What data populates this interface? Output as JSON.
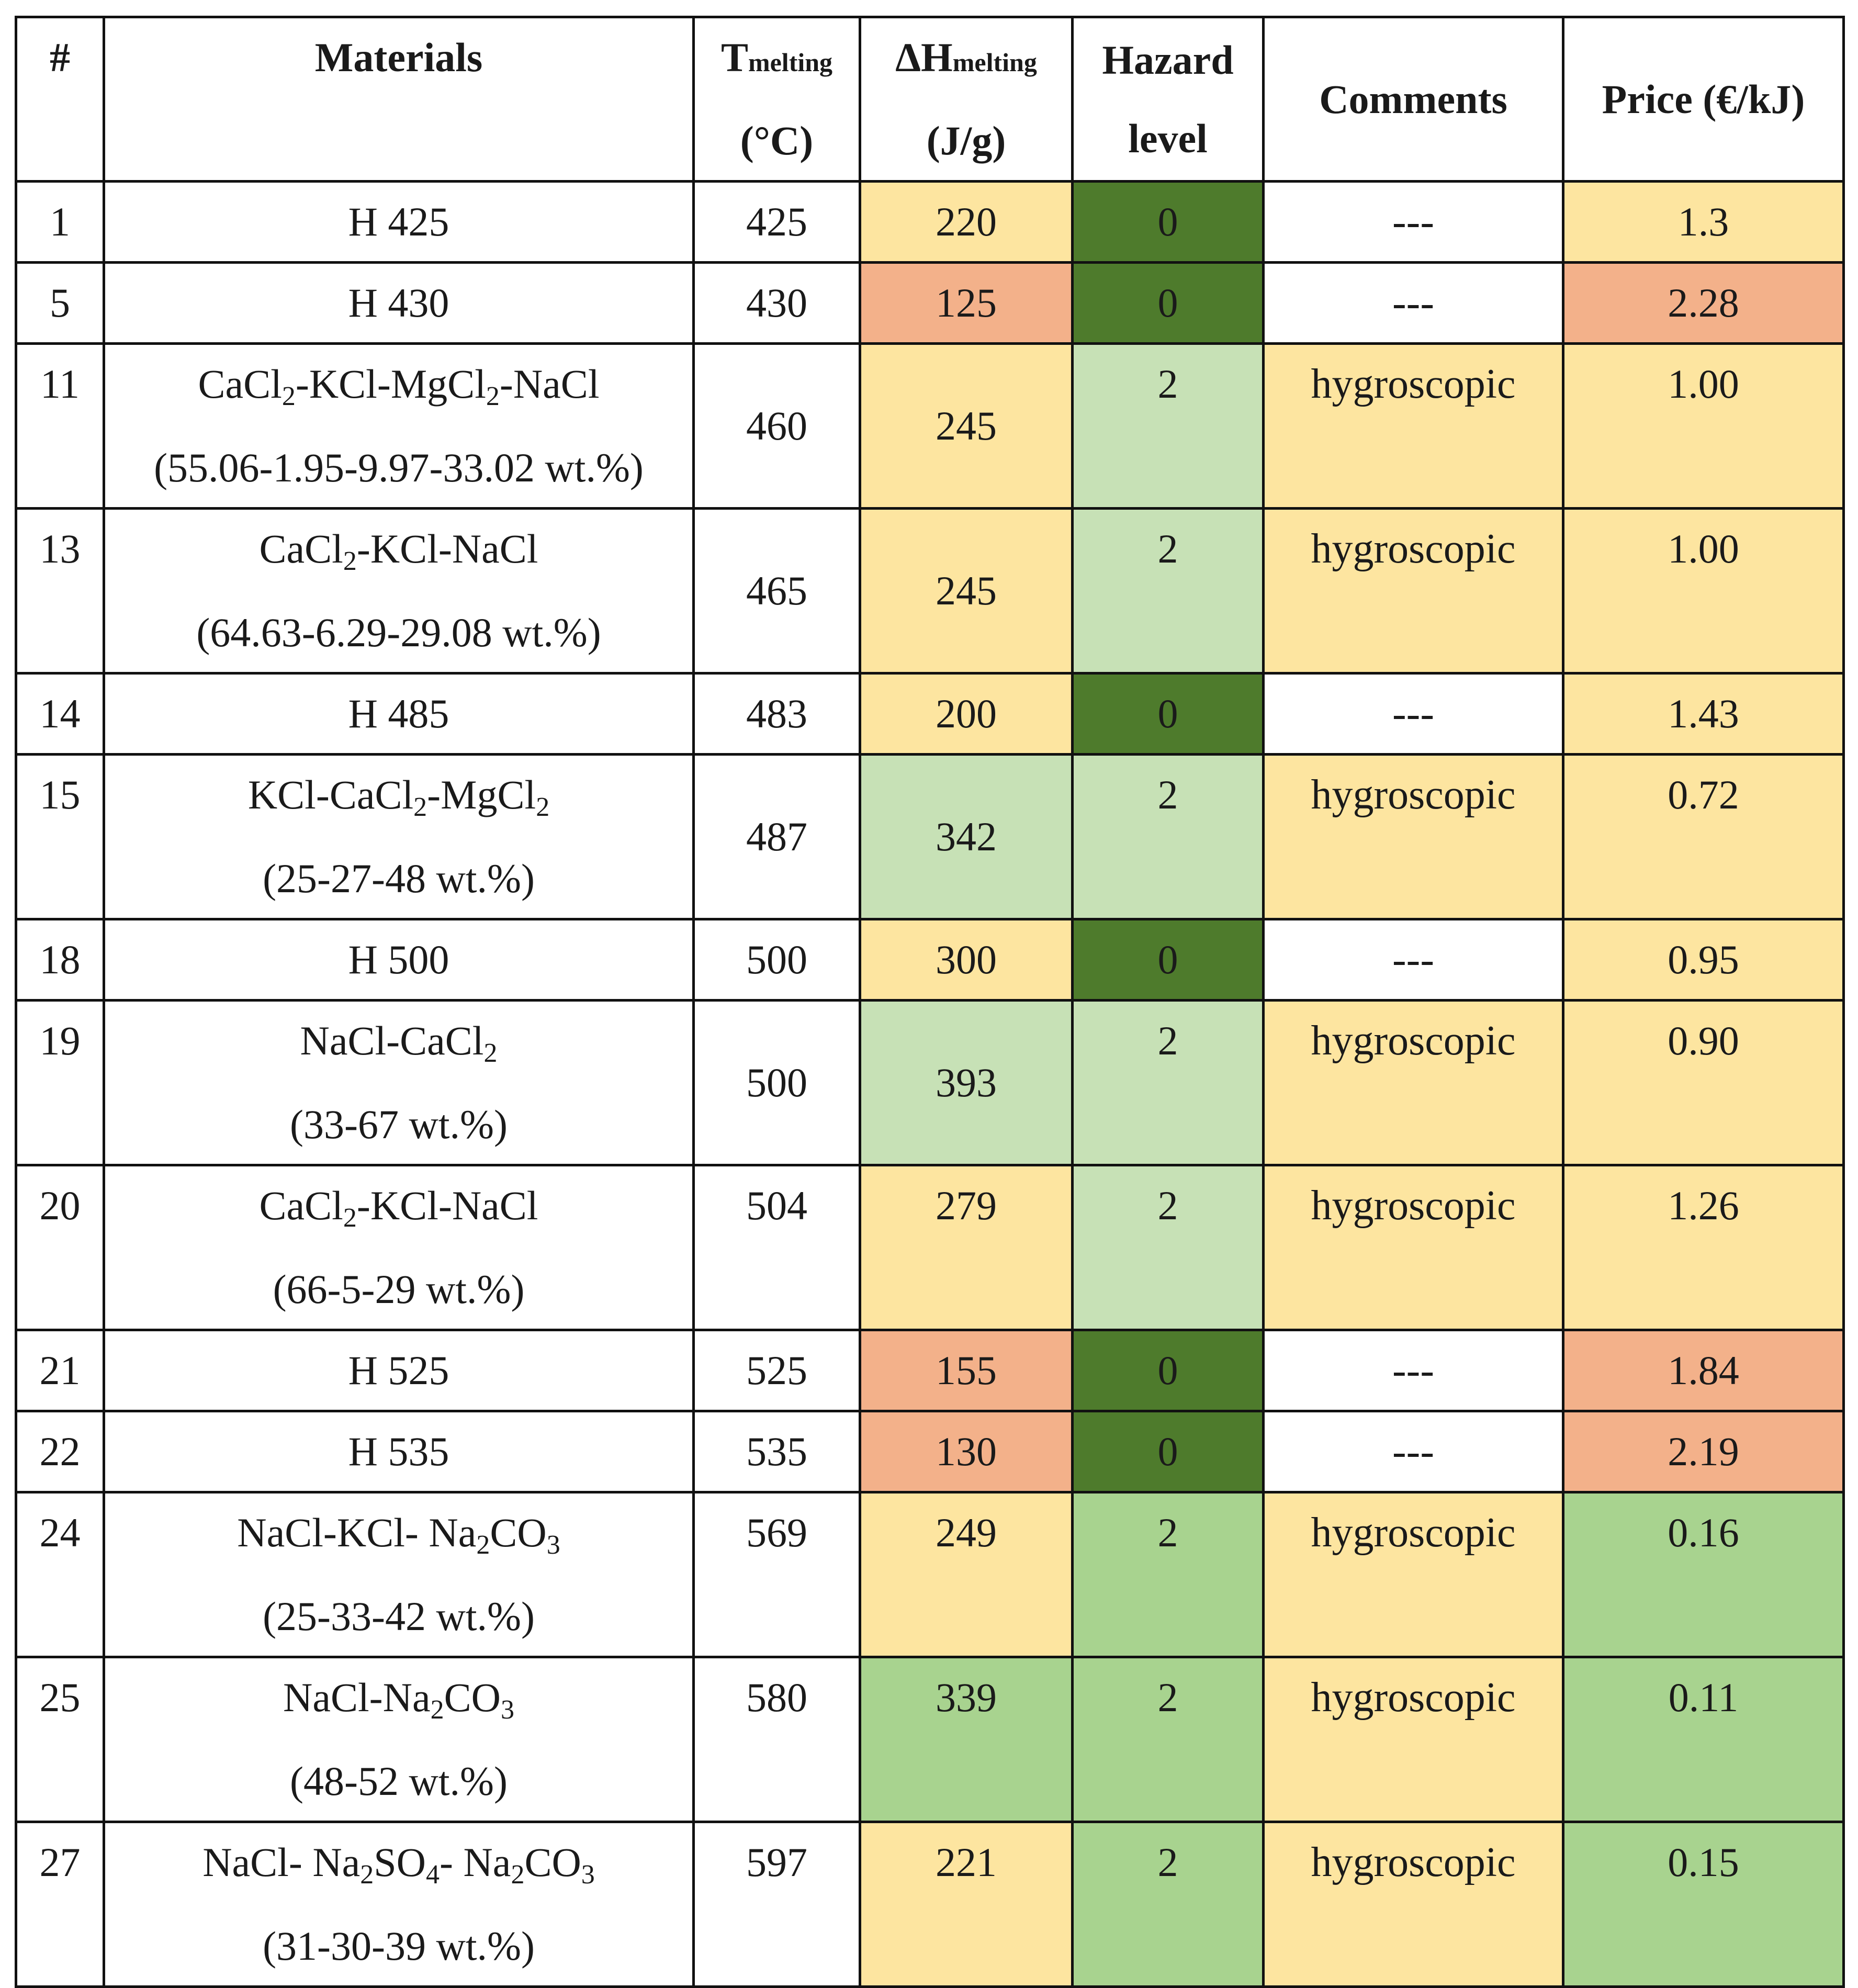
{
  "colors": {
    "white": "#ffffff",
    "yellow": "#fde5a0",
    "orange": "#f3b18a",
    "dark_green": "#4e7b2c",
    "light_green": "#c7e1b6",
    "green": "#a8d38f"
  },
  "header": {
    "num": "#",
    "materials": "Materials",
    "tmelt_main": "T",
    "tmelt_sub": "melting",
    "tmelt_unit": "(°C)",
    "dh_main": "ΔH",
    "dh_sub": "melting",
    "dh_unit": "(J/g)",
    "hazard_line1": "Hazard",
    "hazard_line2": "level",
    "comments": "Comments",
    "price": "Price (€/kJ)"
  },
  "rows": [
    {
      "num": "1",
      "mat": [
        [
          "H 425"
        ]
      ],
      "tm": "425",
      "dh": "220",
      "dh_c": "yellow",
      "hz": "0",
      "hz_c": "dark_green",
      "cm": "---",
      "cm_c": "white",
      "pr": "1.3",
      "pr_c": "yellow",
      "tall": false
    },
    {
      "num": "5",
      "mat": [
        [
          "H 430"
        ]
      ],
      "tm": "430",
      "dh": "125",
      "dh_c": "orange",
      "hz": "0",
      "hz_c": "dark_green",
      "cm": "---",
      "cm_c": "white",
      "pr": "2.28",
      "pr_c": "orange",
      "tall": false
    },
    {
      "num": "11",
      "mat": [
        [
          "CaCl",
          "2",
          "-KCl-MgCl",
          "2",
          "-NaCl"
        ],
        [
          "(55.06-1.95-9.97-33.02 wt.%)"
        ]
      ],
      "tm": "460",
      "tm_mid": true,
      "dh": "245",
      "dh_c": "yellow",
      "dh_mid": true,
      "hz": "2",
      "hz_c": "light_green",
      "cm": "hygroscopic",
      "cm_c": "yellow",
      "pr": "1.00",
      "pr_c": "yellow",
      "tall": true
    },
    {
      "num": "13",
      "mat": [
        [
          "CaCl",
          "2",
          "-KCl-NaCl"
        ],
        [
          "(64.63-6.29-29.08 wt.%)"
        ]
      ],
      "tm": "465",
      "tm_mid": true,
      "dh": "245",
      "dh_c": "yellow",
      "dh_mid": true,
      "hz": "2",
      "hz_c": "light_green",
      "cm": "hygroscopic",
      "cm_c": "yellow",
      "pr": "1.00",
      "pr_c": "yellow",
      "tall": true
    },
    {
      "num": "14",
      "mat": [
        [
          "H 485"
        ]
      ],
      "tm": "483",
      "dh": "200",
      "dh_c": "yellow",
      "hz": "0",
      "hz_c": "dark_green",
      "cm": "---",
      "cm_c": "white",
      "pr": "1.43",
      "pr_c": "yellow",
      "tall": false
    },
    {
      "num": "15",
      "mat": [
        [
          "KCl-CaCl",
          "2",
          "-MgCl",
          "2"
        ],
        [
          "(25-27-48 wt.%)"
        ]
      ],
      "tm": "487",
      "tm_mid": true,
      "dh": "342",
      "dh_c": "light_green",
      "dh_mid": true,
      "hz": "2",
      "hz_c": "light_green",
      "cm": "hygroscopic",
      "cm_c": "yellow",
      "pr": "0.72",
      "pr_c": "yellow",
      "tall": true
    },
    {
      "num": "18",
      "mat": [
        [
          "H 500"
        ]
      ],
      "tm": "500",
      "dh": "300",
      "dh_c": "yellow",
      "hz": "0",
      "hz_c": "dark_green",
      "cm": "---",
      "cm_c": "white",
      "pr": "0.95",
      "pr_c": "yellow",
      "tall": false
    },
    {
      "num": "19",
      "mat": [
        [
          "NaCl-CaCl",
          "2"
        ],
        [
          "(33-67 wt.%)"
        ]
      ],
      "tm": "500",
      "tm_mid": true,
      "dh": "393",
      "dh_c": "light_green",
      "dh_mid": true,
      "hz": "2",
      "hz_c": "light_green",
      "cm": "hygroscopic",
      "cm_c": "yellow",
      "pr": "0.90",
      "pr_c": "yellow",
      "tall": true
    },
    {
      "num": "20",
      "mat": [
        [
          "CaCl",
          "2",
          "-KCl-NaCl"
        ],
        [
          "(66-5-29 wt.%)"
        ]
      ],
      "tm": "504",
      "dh": "279",
      "dh_c": "yellow",
      "hz": "2",
      "hz_c": "light_green",
      "cm": "hygroscopic",
      "cm_c": "yellow",
      "pr": "1.26",
      "pr_c": "yellow",
      "tall": true
    },
    {
      "num": "21",
      "mat": [
        [
          "H 525"
        ]
      ],
      "tm": "525",
      "dh": "155",
      "dh_c": "orange",
      "hz": "0",
      "hz_c": "dark_green",
      "cm": "---",
      "cm_c": "white",
      "pr": "1.84",
      "pr_c": "orange",
      "tall": false
    },
    {
      "num": "22",
      "mat": [
        [
          "H 535"
        ]
      ],
      "tm": "535",
      "dh": "130",
      "dh_c": "orange",
      "hz": "0",
      "hz_c": "dark_green",
      "cm": "---",
      "cm_c": "white",
      "pr": "2.19",
      "pr_c": "orange",
      "tall": false
    },
    {
      "num": "24",
      "mat": [
        [
          "NaCl-KCl- Na",
          "2",
          "CO",
          "3"
        ],
        [
          "(25-33-42 wt.%)"
        ]
      ],
      "tm": "569",
      "dh": "249",
      "dh_c": "yellow",
      "hz": "2",
      "hz_c": "green",
      "cm": "hygroscopic",
      "cm_c": "yellow",
      "pr": "0.16",
      "pr_c": "green",
      "tall": true
    },
    {
      "num": "25",
      "mat": [
        [
          "NaCl-Na",
          "2",
          "CO",
          "3"
        ],
        [
          "(48-52 wt.%)"
        ]
      ],
      "tm": "580",
      "dh": "339",
      "dh_c": "green",
      "hz": "2",
      "hz_c": "green",
      "cm": "hygroscopic",
      "cm_c": "yellow",
      "pr": "0.11",
      "pr_c": "green",
      "tall": true
    },
    {
      "num": "27",
      "mat": [
        [
          "NaCl- Na",
          "2",
          "SO",
          "4",
          "- Na",
          "2",
          "CO",
          "3"
        ],
        [
          "(31-30-39 wt.%)"
        ]
      ],
      "tm": "597",
      "dh": "221",
      "dh_c": "yellow",
      "hz": "2",
      "hz_c": "green",
      "cm": "hygroscopic",
      "cm_c": "yellow",
      "pr": "0.15",
      "pr_c": "green",
      "tall": true
    }
  ]
}
